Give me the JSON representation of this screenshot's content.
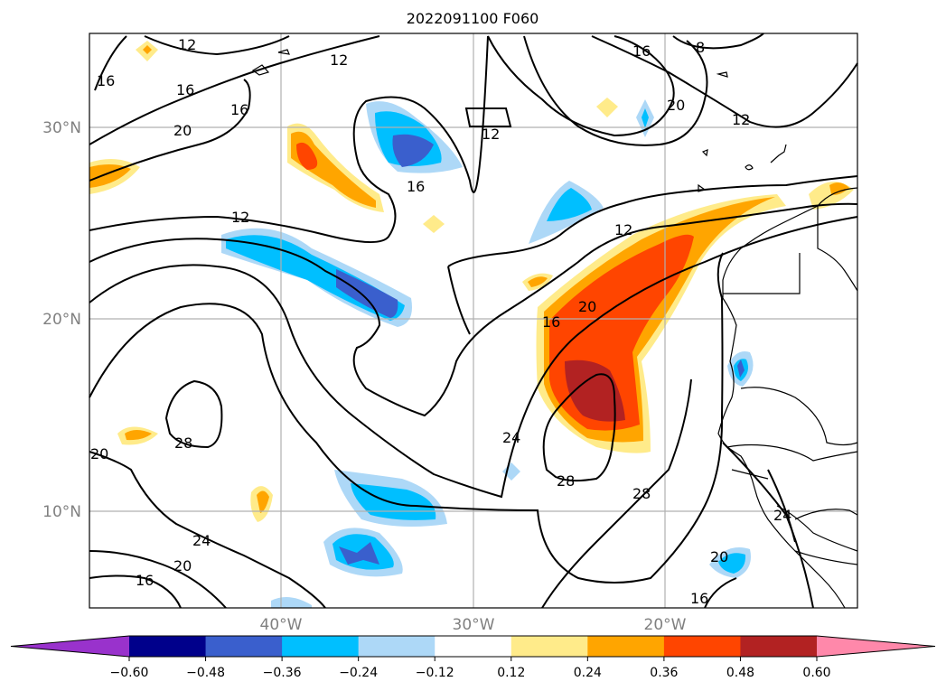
{
  "title": "2022091100 F060",
  "map": {
    "lat_labels": [
      "30°N",
      "20°N",
      "10°N"
    ],
    "lon_labels": [
      "40°W",
      "30°W",
      "20°W"
    ],
    "contour_labels": [
      "12",
      "16",
      "20",
      "24",
      "28",
      "8"
    ]
  },
  "colorbar": {
    "ticks": [
      "−0.60",
      "−0.48",
      "−0.36",
      "−0.24",
      "−0.12",
      "0.12",
      "0.24",
      "0.36",
      "0.48",
      "0.60"
    ],
    "colors": [
      "#9932cc",
      "#00008b",
      "#3a5fcd",
      "#00bfff",
      "#add8f7",
      "#ffffff",
      "#ffeb8a",
      "#ffa500",
      "#ff4500",
      "#b22222",
      "#ff88aa"
    ],
    "extend": "both"
  }
}
